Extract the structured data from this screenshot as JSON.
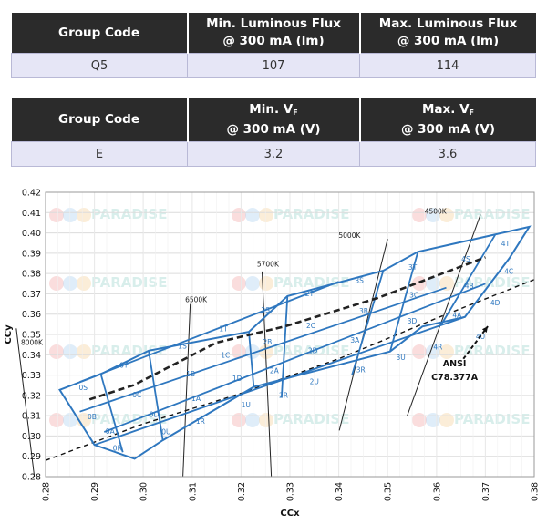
{
  "table_flux": {
    "headers": [
      "Group Code",
      "Min. Luminous Flux",
      "@ 300 mA (lm)",
      "Max. Luminous Flux",
      "@ 300 mA (lm)"
    ],
    "row": [
      "Q5",
      "107",
      "114"
    ]
  },
  "table_vf": {
    "headers": [
      "Group Code",
      "Min. V",
      "F",
      "@ 300 mA (V)",
      "Max. V",
      "F",
      "@ 300 mA (V)"
    ],
    "row": [
      "E",
      "3.2",
      "3.6"
    ]
  },
  "watermark": "PARADISE",
  "chart_data": {
    "type": "scatter",
    "xlabel": "CCx",
    "ylabel": "CCy",
    "xlim": [
      0.28,
      0.38
    ],
    "ylim": [
      0.28,
      0.42
    ],
    "xticks": [
      0.28,
      0.29,
      0.3,
      0.31,
      0.32,
      0.33,
      0.34,
      0.35,
      0.36,
      0.37,
      0.38
    ],
    "xtick_labels": [
      "0.28",
      "0.29",
      "0.30",
      "0.31",
      "0.32",
      "0.33",
      "0.34",
      "0.35",
      "0.36",
      "0.37",
      "0.38"
    ],
    "yticks": [
      0.28,
      0.29,
      0.3,
      0.31,
      0.32,
      0.33,
      0.34,
      0.35,
      0.36,
      0.37,
      0.38,
      0.39,
      0.4,
      0.41,
      0.42
    ],
    "ytick_labels": [
      "0.28",
      "0.29",
      "0.30",
      "0.31",
      "0.32",
      "0.33",
      "0.34",
      "0.35",
      "0.36",
      "0.37",
      "0.38",
      "0.39",
      "0.40",
      "0.41",
      "0.42"
    ],
    "grid": true,
    "planckian_locus": [
      [
        0.28,
        0.288
      ],
      [
        0.3,
        0.306
      ],
      [
        0.32,
        0.321
      ],
      [
        0.34,
        0.338
      ],
      [
        0.36,
        0.358
      ],
      [
        0.38,
        0.377
      ]
    ],
    "bin_outline": [
      [
        0.2829,
        0.3227
      ],
      [
        0.2913,
        0.3305
      ],
      [
        0.3011,
        0.342
      ],
      [
        0.3216,
        0.3513
      ],
      [
        0.3295,
        0.3689
      ],
      [
        0.3491,
        0.3814
      ],
      [
        0.3562,
        0.3907
      ],
      [
        0.379,
        0.403
      ],
      [
        0.3749,
        0.3875
      ],
      [
        0.3658,
        0.3586
      ],
      [
        0.3571,
        0.3539
      ],
      [
        0.3505,
        0.3416
      ],
      [
        0.3226,
        0.3242
      ],
      [
        0.304,
        0.2979
      ],
      [
        0.2982,
        0.2888
      ],
      [
        0.29,
        0.2956
      ]
    ],
    "bin_lines": [
      [
        [
          0.2913,
          0.3305
        ],
        [
          0.2958,
          0.292
        ]
      ],
      [
        [
          0.3011,
          0.342
        ],
        [
          0.304,
          0.2979
        ]
      ],
      [
        [
          0.3216,
          0.3513
        ],
        [
          0.3226,
          0.3242
        ]
      ],
      [
        [
          0.3295,
          0.3689
        ],
        [
          0.3283,
          0.319
        ]
      ],
      [
        [
          0.3491,
          0.3814
        ],
        [
          0.3427,
          0.33
        ]
      ],
      [
        [
          0.3562,
          0.3907
        ],
        [
          0.3505,
          0.3416
        ]
      ],
      [
        [
          0.372,
          0.399
        ],
        [
          0.361,
          0.355
        ]
      ],
      [
        [
          0.287,
          0.3266
        ],
        [
          0.34,
          0.376
        ]
      ],
      [
        [
          0.29,
          0.2956
        ],
        [
          0.3658,
          0.3586
        ]
      ],
      [
        [
          0.287,
          0.312
        ],
        [
          0.362,
          0.373
        ]
      ],
      [
        [
          0.292,
          0.302
        ],
        [
          0.37,
          0.375
        ]
      ]
    ],
    "center_line": [
      [
        0.289,
        0.318
      ],
      [
        0.298,
        0.325
      ],
      [
        0.315,
        0.346
      ],
      [
        0.329,
        0.354
      ],
      [
        0.348,
        0.368
      ],
      [
        0.37,
        0.388
      ]
    ],
    "bin_labels": [
      {
        "label": "0S",
        "x": 0.2877,
        "y": 0.3227
      },
      {
        "label": "0T",
        "x": 0.296,
        "y": 0.3337
      },
      {
        "label": "1S",
        "x": 0.308,
        "y": 0.343
      },
      {
        "label": "1T",
        "x": 0.3164,
        "y": 0.3515
      },
      {
        "label": "2S",
        "x": 0.325,
        "y": 0.3607
      },
      {
        "label": "2T",
        "x": 0.334,
        "y": 0.3688
      },
      {
        "label": "3S",
        "x": 0.3442,
        "y": 0.3753
      },
      {
        "label": "3T",
        "x": 0.3551,
        "y": 0.3818
      },
      {
        "label": "4S",
        "x": 0.366,
        "y": 0.3858
      },
      {
        "label": "4T",
        "x": 0.3741,
        "y": 0.3936
      },
      {
        "label": "0B",
        "x": 0.2895,
        "y": 0.3083
      },
      {
        "label": "0C",
        "x": 0.2987,
        "y": 0.3191
      },
      {
        "label": "1B",
        "x": 0.3097,
        "y": 0.3293
      },
      {
        "label": "1C",
        "x": 0.3168,
        "y": 0.3386
      },
      {
        "label": "2B",
        "x": 0.3254,
        "y": 0.3451
      },
      {
        "label": "2C",
        "x": 0.3343,
        "y": 0.3532
      },
      {
        "label": "3B",
        "x": 0.3451,
        "y": 0.3604
      },
      {
        "label": "3C",
        "x": 0.3554,
        "y": 0.3682
      },
      {
        "label": "4B",
        "x": 0.3667,
        "y": 0.3726
      },
      {
        "label": "4C",
        "x": 0.3748,
        "y": 0.3799
      },
      {
        "label": "0A",
        "x": 0.2932,
        "y": 0.301
      },
      {
        "label": "0D",
        "x": 0.3022,
        "y": 0.3094
      },
      {
        "label": "1A",
        "x": 0.3108,
        "y": 0.3173
      },
      {
        "label": "1D",
        "x": 0.3192,
        "y": 0.3272
      },
      {
        "label": "2A",
        "x": 0.3268,
        "y": 0.3309
      },
      {
        "label": "2D",
        "x": 0.3347,
        "y": 0.3409
      },
      {
        "label": "3A",
        "x": 0.3433,
        "y": 0.3459
      },
      {
        "label": "3D",
        "x": 0.355,
        "y": 0.3553
      },
      {
        "label": "4A",
        "x": 0.3642,
        "y": 0.3583
      },
      {
        "label": "4D",
        "x": 0.372,
        "y": 0.3643
      },
      {
        "label": "0R",
        "x": 0.2947,
        "y": 0.2928
      },
      {
        "label": "0U",
        "x": 0.3047,
        "y": 0.3009
      },
      {
        "label": "1R",
        "x": 0.3117,
        "y": 0.306
      },
      {
        "label": "1U",
        "x": 0.321,
        "y": 0.314
      },
      {
        "label": "2R",
        "x": 0.3287,
        "y": 0.3189
      },
      {
        "label": "2U",
        "x": 0.335,
        "y": 0.3255
      },
      {
        "label": "3R",
        "x": 0.3445,
        "y": 0.3314
      },
      {
        "label": "3U",
        "x": 0.3527,
        "y": 0.3374
      },
      {
        "label": "4R",
        "x": 0.3603,
        "y": 0.3425
      },
      {
        "label": "4U",
        "x": 0.369,
        "y": 0.3477
      }
    ],
    "cct_lines": [
      {
        "label": "8000K",
        "from": [
          0.2777,
          0.28
        ],
        "to": [
          0.274,
          0.353
        ]
      },
      {
        "label": "6500K",
        "from": [
          0.3081,
          0.28
        ],
        "to": [
          0.3096,
          0.365
        ]
      },
      {
        "label": "5700K",
        "from": [
          0.3262,
          0.28
        ],
        "to": [
          0.3243,
          0.381
        ]
      },
      {
        "label": "5000K",
        "from": [
          0.3401,
          0.3027
        ],
        "to": [
          0.35,
          0.397
        ]
      },
      {
        "label": "4500K",
        "from": [
          0.354,
          0.31
        ],
        "to": [
          0.369,
          0.409
        ]
      }
    ],
    "cct_label_positions": [
      {
        "label": "8000K",
        "x": 0.2772,
        "y": 0.3448
      },
      {
        "label": "6500K",
        "x": 0.3108,
        "y": 0.366
      },
      {
        "label": "5700K",
        "x": 0.3255,
        "y": 0.3835
      },
      {
        "label": "5000K",
        "x": 0.3422,
        "y": 0.3975
      },
      {
        "label": "4500K",
        "x": 0.3598,
        "y": 0.4095
      }
    ],
    "annotations": [
      {
        "text": "ANSI",
        "x": 0.3637,
        "y": 0.3343
      },
      {
        "text": "C78.377A",
        "x": 0.3637,
        "y": 0.3275
      }
    ],
    "ansi_arrow": {
      "from": [
        0.3655,
        0.338
      ],
      "to": [
        0.3705,
        0.354
      ]
    }
  }
}
